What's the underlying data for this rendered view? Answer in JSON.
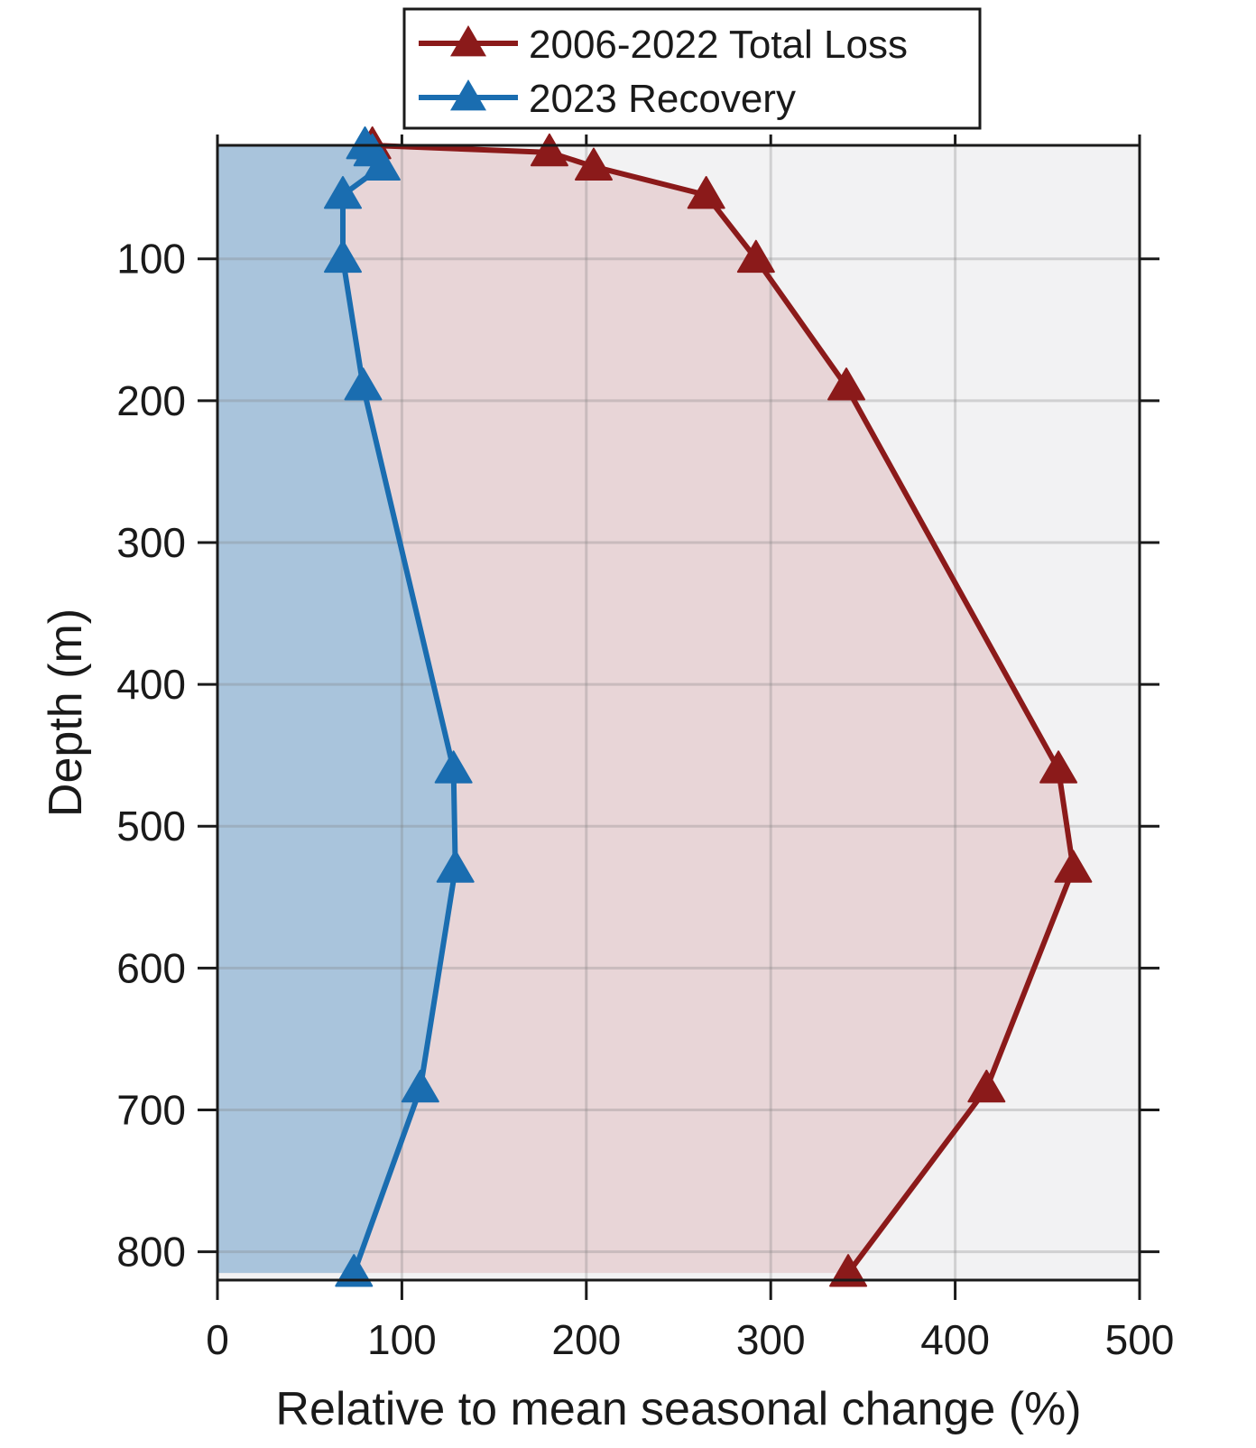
{
  "chart_data": {
    "type": "line",
    "title": "",
    "xlabel": "Relative to mean seasonal change (%)",
    "ylabel": "Depth (m)",
    "xlim": [
      0,
      500
    ],
    "ylim": [
      820,
      20
    ],
    "y_reversed": true,
    "grid": true,
    "legend_position": "top-center",
    "x_ticks": [
      0,
      100,
      200,
      300,
      400,
      500
    ],
    "x_tick_labels": [
      "0",
      "100",
      "200",
      "300",
      "400",
      "500"
    ],
    "y_ticks": [
      100,
      200,
      300,
      400,
      500,
      600,
      700,
      800
    ],
    "y_tick_labels": [
      "100",
      "200",
      "300",
      "400",
      "500",
      "600",
      "700",
      "800"
    ],
    "series": [
      {
        "name": "2006-2022 Total Loss",
        "color": "#8b1a1a",
        "fill_color": "#e8d5d7",
        "marker": "triangle-up",
        "points": [
          {
            "x": 84,
            "y": 20
          },
          {
            "x": 180,
            "y": 25
          },
          {
            "x": 204,
            "y": 35
          },
          {
            "x": 265,
            "y": 55
          },
          {
            "x": 292,
            "y": 100
          },
          {
            "x": 341,
            "y": 190
          },
          {
            "x": 456,
            "y": 460
          },
          {
            "x": 464,
            "y": 530
          },
          {
            "x": 417,
            "y": 685
          },
          {
            "x": 342,
            "y": 815
          }
        ]
      },
      {
        "name": "2023 Recovery",
        "color": "#1a6db0",
        "fill_color": "#a9c4dc",
        "marker": "triangle-up",
        "points": [
          {
            "x": 80,
            "y": 20
          },
          {
            "x": 84,
            "y": 25
          },
          {
            "x": 89,
            "y": 35
          },
          {
            "x": 68,
            "y": 55
          },
          {
            "x": 68,
            "y": 100
          },
          {
            "x": 79,
            "y": 190
          },
          {
            "x": 128,
            "y": 460
          },
          {
            "x": 129,
            "y": 530
          },
          {
            "x": 110,
            "y": 685
          },
          {
            "x": 74,
            "y": 815
          }
        ]
      }
    ]
  }
}
